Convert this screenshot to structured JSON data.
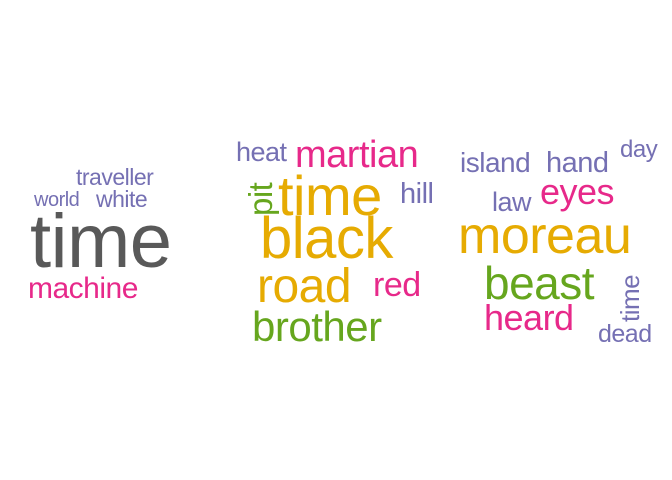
{
  "clouds": [
    {
      "words": [
        {
          "text": "time",
          "color": "#595959"
        },
        {
          "text": "traveller",
          "color": "#7570b3"
        },
        {
          "text": "world",
          "color": "#7570b3"
        },
        {
          "text": "white",
          "color": "#7570b3"
        },
        {
          "text": "machine",
          "color": "#e7298a"
        }
      ]
    },
    {
      "words": [
        {
          "text": "heat",
          "color": "#7570b3"
        },
        {
          "text": "martian",
          "color": "#e7298a"
        },
        {
          "text": "pit",
          "color": "#66a61e"
        },
        {
          "text": "time",
          "color": "#e6ab02"
        },
        {
          "text": "hill",
          "color": "#7570b3"
        },
        {
          "text": "black",
          "color": "#e6ab02"
        },
        {
          "text": "road",
          "color": "#e6ab02"
        },
        {
          "text": "red",
          "color": "#e7298a"
        },
        {
          "text": "brother",
          "color": "#66a61e"
        }
      ]
    },
    {
      "words": [
        {
          "text": "island",
          "color": "#7570b3"
        },
        {
          "text": "hand",
          "color": "#7570b3"
        },
        {
          "text": "day",
          "color": "#7570b3"
        },
        {
          "text": "law",
          "color": "#7570b3"
        },
        {
          "text": "eyes",
          "color": "#e7298a"
        },
        {
          "text": "moreau",
          "color": "#e6ab02"
        },
        {
          "text": "beast",
          "color": "#66a61e"
        },
        {
          "text": "time",
          "color": "#7570b3"
        },
        {
          "text": "heard",
          "color": "#e7298a"
        },
        {
          "text": "dead",
          "color": "#7570b3"
        }
      ]
    }
  ]
}
